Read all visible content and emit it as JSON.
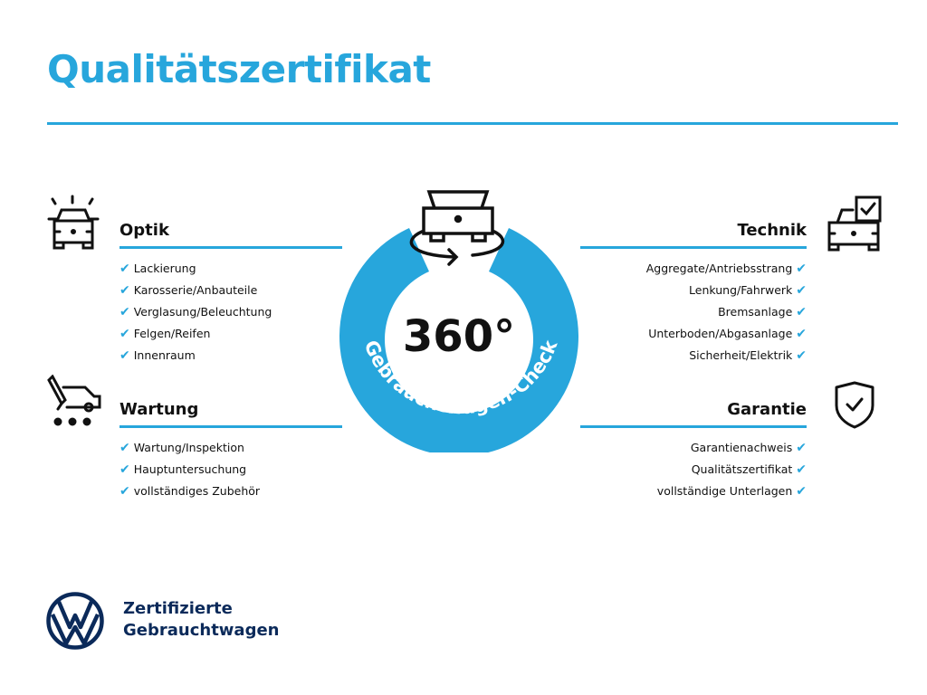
{
  "title": "Qualitätszertifikat",
  "center": {
    "value": "360°",
    "ring_text": "Gebrauchtwagen-Check"
  },
  "sections": {
    "optik": {
      "heading": "Optik",
      "items": [
        "Lackierung",
        "Karosserie/Anbauteile",
        "Verglasung/Beleuchtung",
        "Felgen/Reifen",
        "Innenraum"
      ]
    },
    "wartung": {
      "heading": "Wartung",
      "items": [
        "Wartung/Inspektion",
        "Hauptuntersuchung",
        "vollständiges Zubehör"
      ]
    },
    "technik": {
      "heading": "Technik",
      "items": [
        "Aggregate/Antriebsstrang",
        "Lenkung/Fahrwerk",
        "Bremsanlage",
        "Unterboden/Abgasanlage",
        "Sicherheit/Elektrik"
      ]
    },
    "garantie": {
      "heading": "Garantie",
      "items": [
        "Garantienachweis",
        "Qualitätszertifikat",
        "vollständige Unterlagen"
      ]
    }
  },
  "brand": {
    "line1": "Zertifizierte",
    "line2": "Gebrauchtwagen"
  },
  "colors": {
    "accent": "#27a6dc",
    "navy": "#0b2a5a",
    "text": "#111111"
  },
  "icons": {
    "check": "check-icon",
    "optik": "car-lights-icon",
    "wartung": "service-car-icon",
    "technik": "car-checklist-icon",
    "garantie": "shield-check-icon",
    "center": "car-rotate-icon",
    "logo": "vw-logo"
  }
}
